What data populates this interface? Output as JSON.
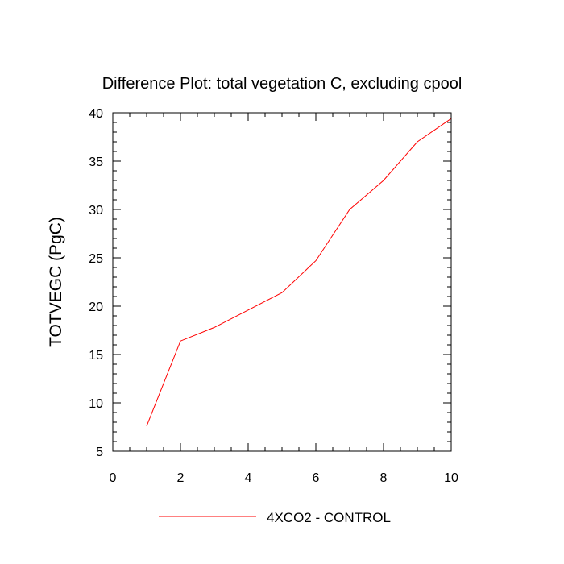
{
  "chart_data": {
    "type": "line",
    "title": "Difference Plot: total vegetation C, excluding cpool",
    "xlabel": "",
    "ylabel": "TOTVEGC  (PgC)",
    "xlim": [
      0,
      10
    ],
    "ylim": [
      5,
      40
    ],
    "xticks": [
      0,
      2,
      4,
      6,
      8,
      10
    ],
    "yticks": [
      5,
      10,
      15,
      20,
      25,
      30,
      35,
      40
    ],
    "grid": false,
    "legend_position": "bottom-center",
    "series": [
      {
        "name": "4XCO2 - CONTROL",
        "color": "#ff0000",
        "x": [
          1,
          2,
          3,
          4,
          5,
          6,
          7,
          8,
          9,
          10
        ],
        "y": [
          7.6,
          16.4,
          17.8,
          19.6,
          21.4,
          24.7,
          30.0,
          33.0,
          37.0,
          39.4
        ]
      }
    ]
  }
}
